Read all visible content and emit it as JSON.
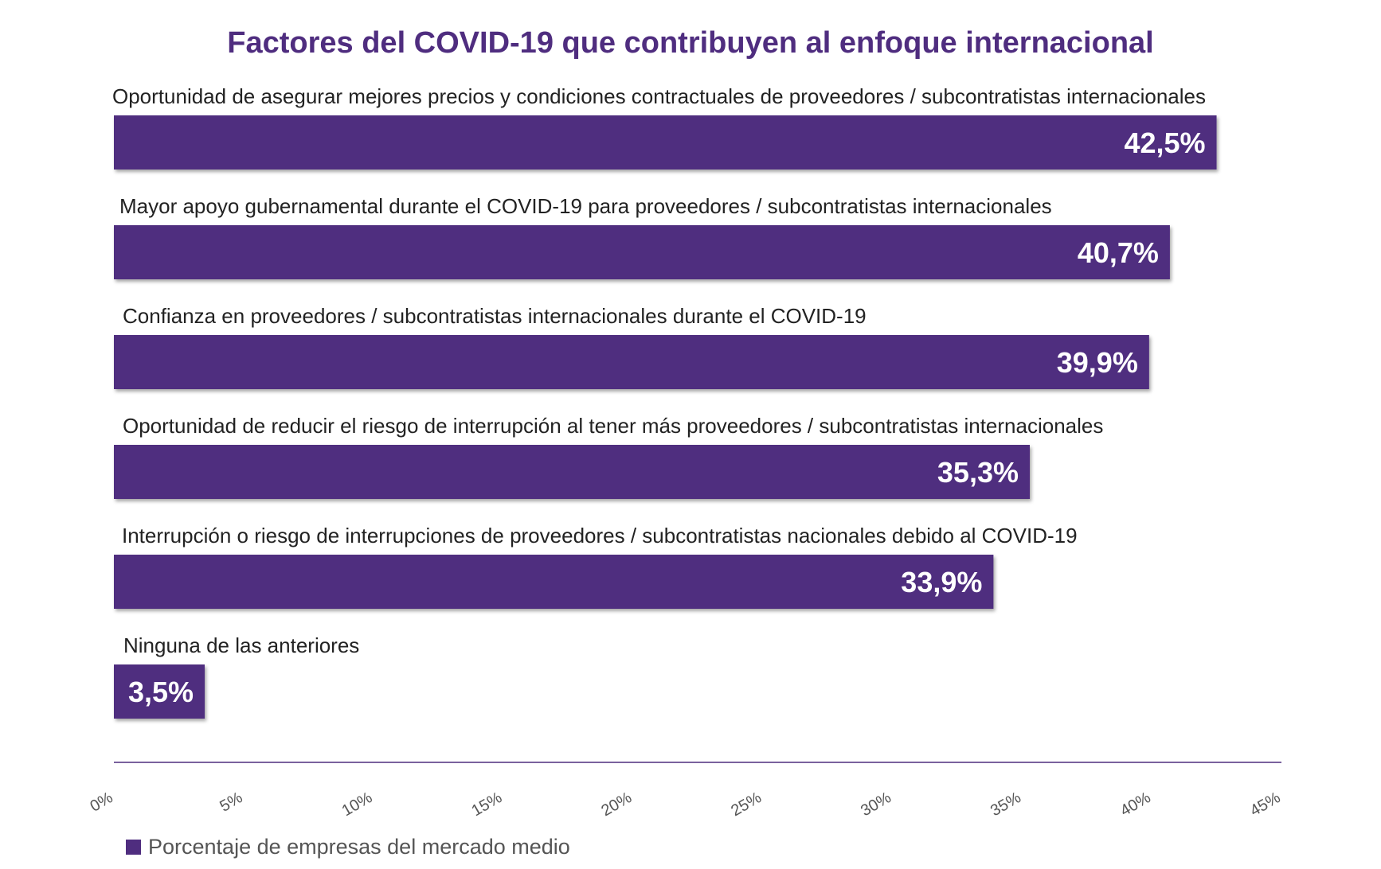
{
  "chart_data": {
    "type": "bar",
    "orientation": "horizontal",
    "title": "Factores del COVID-19 que contribuyen al enfoque internacional",
    "categories": [
      "Oportunidad de asegurar mejores precios y condiciones contractuales de proveedores / subcontratistas internacionales",
      "Mayor apoyo gubernamental durante el COVID-19 para proveedores / subcontratistas internacionales",
      "Confianza en proveedores / subcontratistas internacionales durante el COVID-19",
      "Oportunidad de reducir el riesgo de interrupción al tener más proveedores / subcontratistas internacionales",
      "Interrupción o riesgo de interrupciones de proveedores / subcontratistas nacionales debido al COVID-19",
      "Ninguna de las anteriores"
    ],
    "series": [
      {
        "name": "Porcentaje de empresas del mercado medio",
        "values": [
          42.5,
          40.7,
          39.9,
          35.3,
          33.9,
          3.5
        ]
      }
    ],
    "data_labels": [
      "42,5%",
      "40,7%",
      "39,9%",
      "35,3%",
      "33,9%",
      "3,5%"
    ],
    "xlim": [
      0,
      45
    ],
    "xticks": [
      0,
      5,
      10,
      15,
      20,
      25,
      30,
      35,
      40,
      45
    ],
    "xtick_labels": [
      "0%",
      "5%",
      "10%",
      "15%",
      "20%",
      "25%",
      "30%",
      "35%",
      "40%",
      "45%"
    ],
    "grid": false,
    "legend_position": "bottom-left",
    "colors": {
      "bar": "#4f2d7f",
      "title": "#4f2d7f",
      "axis": "#4f2d7f",
      "value_text": "#ffffff"
    }
  }
}
